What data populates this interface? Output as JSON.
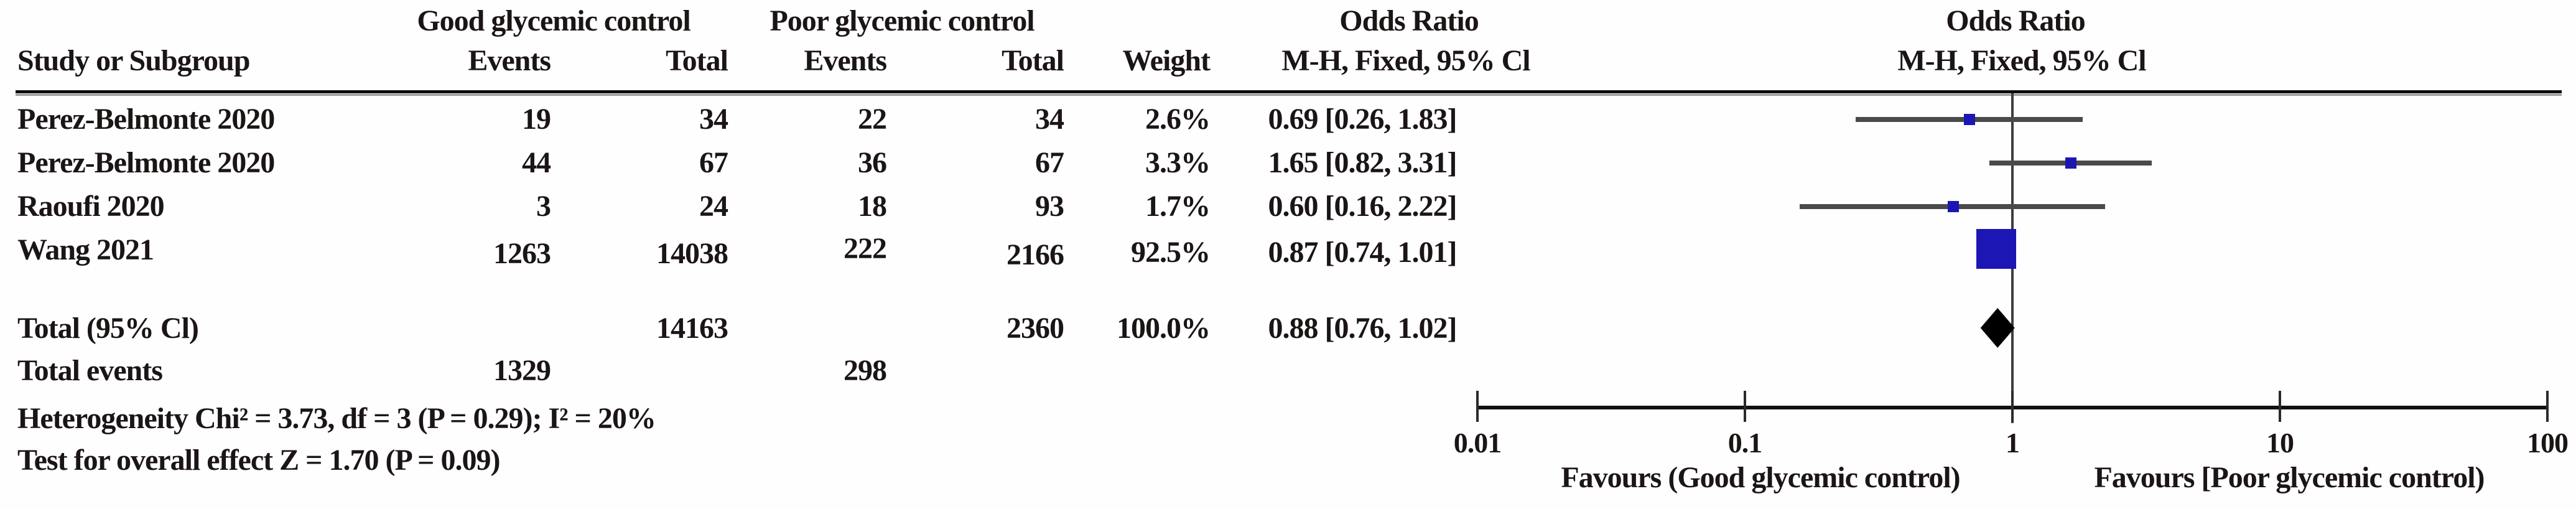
{
  "figure_title": "Forest plot: odds ratio, good vs poor glycemic control",
  "table": {
    "group_headers": {
      "good": "Good glycemic control",
      "poor": "Poor glycemic control",
      "or_left": "Odds Ratio",
      "or_right": "Odds Ratio"
    },
    "col_headers": {
      "study": "Study or Subgroup",
      "events_good": "Events",
      "total_good": "Total",
      "events_poor": "Events",
      "total_poor": "Total",
      "weight": "Weight",
      "mh_left": "M-H, Fixed, 95% Cl",
      "mh_right": "M-H, Fixed, 95% Cl"
    },
    "rows": [
      {
        "study": "Perez-Belmonte 2020",
        "events_good": "19",
        "total_good": "34",
        "events_poor": "22",
        "total_poor": "34",
        "weight": "2.6%",
        "or_ci": "0.69 [0.26, 1.83]"
      },
      {
        "study": "Perez-Belmonte 2020",
        "events_good": "44",
        "total_good": "67",
        "events_poor": "36",
        "total_poor": "67",
        "weight": "3.3%",
        "or_ci": "1.65 [0.82, 3.31]"
      },
      {
        "study": "Raoufi 2020",
        "events_good": "3",
        "total_good": "24",
        "events_poor": "18",
        "total_poor": "93",
        "weight": "1.7%",
        "or_ci": "0.60 [0.16, 2.22]"
      },
      {
        "study": "Wang 2021",
        "events_good": "1263",
        "total_good": "14038",
        "events_poor": "222",
        "total_poor": "2166",
        "weight": "92.5%",
        "or_ci": "0.87 [0.74, 1.01]"
      }
    ],
    "total_row": {
      "label": "Total (95% Cl)",
      "total_good": "14163",
      "total_poor": "2360",
      "weight": "100.0%",
      "or_ci": "0.88 [0.76, 1.02]"
    },
    "total_events": {
      "label": "Total events",
      "events_good": "1329",
      "events_poor": "298"
    },
    "heterogeneity": "Heterogeneity Chi² = 3.73, df = 3 (P = 0.29); I² = 20%",
    "overall_effect": "Test for overall effect Z = 1.70 (P = 0.09)"
  },
  "chart_data": {
    "type": "forest",
    "x_scale": "log10",
    "xlim": [
      0.01,
      100
    ],
    "x_ticks": [
      0.01,
      0.1,
      1,
      10,
      100
    ],
    "tick_labels": [
      "0.01",
      "0.1",
      "1",
      "10",
      "100"
    ],
    "no_effect_line": 1,
    "effect_measure": "Odds Ratio, M-H, Fixed, 95% Cl",
    "favours_left": "Favours (Good glycemic control)",
    "favours_right": "Favours [Poor glycemic control)",
    "studies": [
      {
        "name": "Perez-Belmonte 2020",
        "or": 0.69,
        "ci_low": 0.26,
        "ci_high": 1.83,
        "weight_pct": 2.6
      },
      {
        "name": "Perez-Belmonte 2020",
        "or": 1.65,
        "ci_low": 0.82,
        "ci_high": 3.31,
        "weight_pct": 3.3
      },
      {
        "name": "Raoufi 2020",
        "or": 0.6,
        "ci_low": 0.16,
        "ci_high": 2.22,
        "weight_pct": 1.7
      },
      {
        "name": "Wang 2021",
        "or": 0.87,
        "ci_low": 0.74,
        "ci_high": 1.01,
        "weight_pct": 92.5
      }
    ],
    "total": {
      "or": 0.88,
      "ci_low": 0.76,
      "ci_high": 1.02,
      "weight_pct": 100.0
    },
    "marker_color": "#1c16b4",
    "diamond_color": "#000000",
    "ci_line_color": "#4a4a4a"
  }
}
